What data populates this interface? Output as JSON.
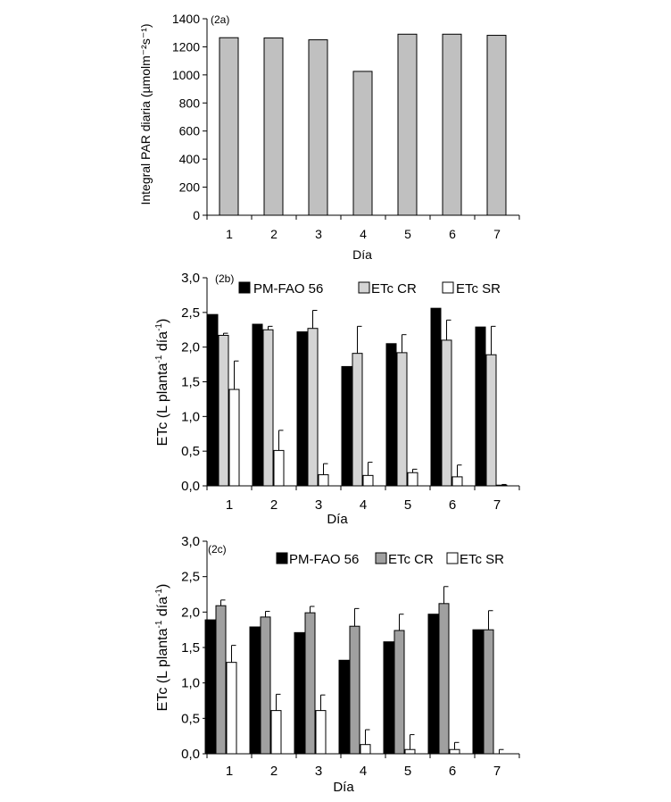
{
  "chart_data": [
    {
      "type": "bar",
      "panel_label": "(2a)",
      "categories": [
        "1",
        "2",
        "3",
        "4",
        "5",
        "6",
        "7"
      ],
      "xlabel": "Día",
      "ylabel": "Integral PAR diaria (µmolm⁻²s⁻¹)",
      "ylim": [
        0,
        1400
      ],
      "yticks": [
        0,
        200,
        400,
        600,
        800,
        1000,
        1200,
        1400
      ],
      "ytick_labels": [
        "0",
        "200",
        "400",
        "600",
        "800",
        "1000",
        "1200",
        "1400"
      ],
      "grid": false,
      "legend": "none",
      "series": [
        {
          "values": [
            1265,
            1263,
            1250,
            1025,
            1290,
            1290,
            1282
          ],
          "color": "#c0c0c0"
        }
      ]
    },
    {
      "type": "bar",
      "panel_label": "(2b)",
      "categories": [
        "1",
        "2",
        "3",
        "4",
        "5",
        "6",
        "7"
      ],
      "xlabel": "Día",
      "ylabel_main": "ETc (L planta",
      "ylabel_sup1": "-1",
      "ylabel_mid": " día",
      "ylabel_sup2": "-1",
      "ylabel_end": ")",
      "ylim": [
        0,
        3
      ],
      "yticks": [
        0,
        0.5,
        1,
        1.5,
        2,
        2.5,
        3
      ],
      "ytick_labels": [
        "0,0",
        "0,5",
        "1,0",
        "1,5",
        "2,0",
        "2,5",
        "3,0"
      ],
      "grid": false,
      "legend": "top",
      "series": [
        {
          "name": "PM-FAO 56",
          "values": [
            2.47,
            2.33,
            2.22,
            1.72,
            2.05,
            2.56,
            2.29
          ],
          "errors": [
            0,
            0,
            0,
            0,
            0,
            0,
            0
          ],
          "color": "#000000"
        },
        {
          "name": "ETc CR",
          "values": [
            2.17,
            2.25,
            2.27,
            1.91,
            1.92,
            2.1,
            1.89
          ],
          "errors": [
            0.03,
            0.05,
            0.26,
            0.39,
            0.26,
            0.29,
            0.41
          ],
          "color": "#d4d4d4"
        },
        {
          "name": "ETc SR",
          "values": [
            1.39,
            0.51,
            0.16,
            0.15,
            0.19,
            0.13,
            0.01
          ],
          "errors": [
            0.41,
            0.29,
            0.16,
            0.19,
            0.05,
            0.17,
            0.01
          ],
          "color": "#ffffff"
        }
      ]
    },
    {
      "type": "bar",
      "panel_label": "(2c)",
      "categories": [
        "1",
        "2",
        "3",
        "4",
        "5",
        "6",
        "7"
      ],
      "xlabel": "Día",
      "ylabel_main": "ETc (L planta",
      "ylabel_sup1": "-1",
      "ylabel_mid": " día",
      "ylabel_sup2": "-1",
      "ylabel_end": ")",
      "ylim": [
        0,
        3
      ],
      "yticks": [
        0,
        0.5,
        1,
        1.5,
        2,
        2.5,
        3
      ],
      "ytick_labels": [
        "0,0",
        "0,5",
        "1,0",
        "1,5",
        "2,0",
        "2,5",
        "3,0"
      ],
      "grid": false,
      "legend": "top",
      "series": [
        {
          "name": "PM-FAO 56",
          "values": [
            1.89,
            1.79,
            1.71,
            1.32,
            1.58,
            1.97,
            1.75
          ],
          "errors": [
            0,
            0,
            0,
            0,
            0,
            0,
            0
          ],
          "color": "#000000"
        },
        {
          "name": "ETc CR",
          "values": [
            2.09,
            1.93,
            1.99,
            1.8,
            1.74,
            2.12,
            1.75
          ],
          "errors": [
            0.08,
            0.08,
            0.09,
            0.25,
            0.23,
            0.24,
            0.27
          ],
          "color": "#a0a0a0"
        },
        {
          "name": "ETc SR",
          "values": [
            1.29,
            0.61,
            0.61,
            0.13,
            0.06,
            0.06,
            0.0
          ],
          "errors": [
            0.24,
            0.23,
            0.22,
            0.21,
            0.21,
            0.1,
            0.06
          ],
          "color": "#ffffff"
        }
      ]
    }
  ]
}
